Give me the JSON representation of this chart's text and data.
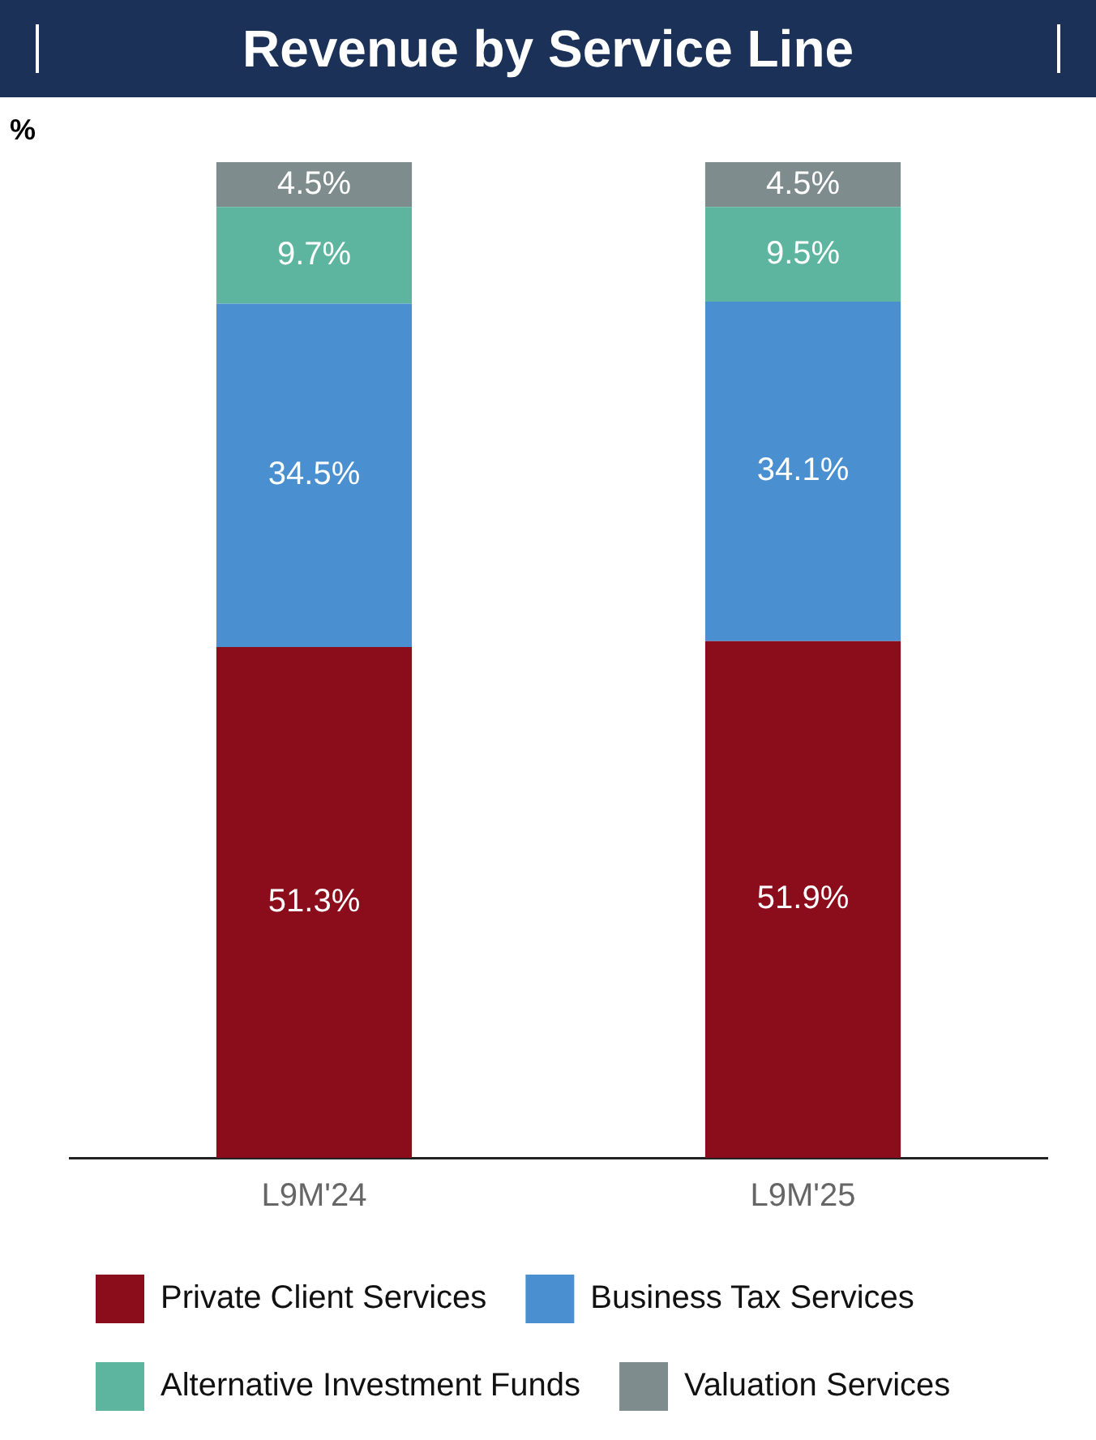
{
  "chart_data": {
    "type": "bar",
    "title": "Revenue by Service Line",
    "ylabel": "%",
    "categories": [
      "L9M'24",
      "L9M'25"
    ],
    "stacked": true,
    "ylim": [
      0,
      100
    ],
    "tick_labels": "x",
    "grid": false,
    "legend": "bottom",
    "series": [
      {
        "name": "Private Client Services",
        "color": "#8b0c1a",
        "values": [
          51.3,
          51.9
        ],
        "value_labels": [
          "51.3%",
          "51.9%"
        ]
      },
      {
        "name": "Business Tax Services",
        "color": "#4a90d0",
        "values": [
          34.5,
          34.1
        ],
        "value_labels": [
          "34.5%",
          "34.1%"
        ]
      },
      {
        "name": "Alternative Investment Funds",
        "color": "#5db5a0",
        "values": [
          9.7,
          9.5
        ],
        "value_labels": [
          "9.7%",
          "9.5%"
        ]
      },
      {
        "name": "Valuation Services",
        "color": "#7f8c8d",
        "values": [
          4.5,
          4.5
        ],
        "value_labels": [
          "4.5%",
          "4.5%"
        ]
      }
    ]
  }
}
